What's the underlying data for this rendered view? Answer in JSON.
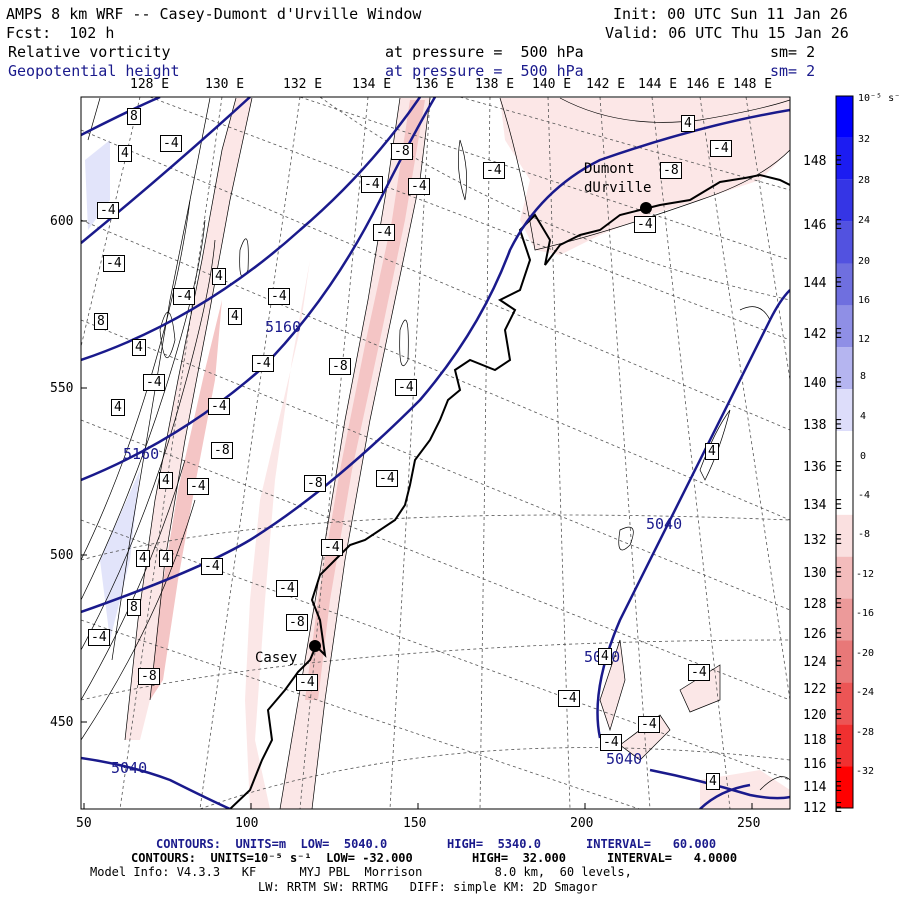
{
  "header": {
    "title": "AMPS 8 km WRF -- Casey-Dumont d'Urville Window",
    "init": "Init: 00 UTC Sun 11 Jan 26",
    "forecast": "Fcst:  102 h",
    "valid": "Valid: 06 UTC Thu 15 Jan 26",
    "field1_name": "Relative vorticity",
    "field1_level": "at pressure =  500 hPa",
    "field1_sm": "sm= 2",
    "field2_name": "Geopotential height",
    "field2_level": "at pressure =  500 hPa",
    "field2_sm": "sm= 2"
  },
  "top_longitude_labels": [
    "128 E",
    "130 E",
    "132 E",
    "134 E",
    "136 E",
    "138 E",
    "140 E",
    "142 E",
    "144 E",
    "146 E",
    "148 E"
  ],
  "right_longitude_labels": [
    "148 E",
    "146 E",
    "144 E",
    "142 E",
    "140 E",
    "138 E",
    "136 E",
    "134 E",
    "132 E",
    "130 E",
    "128 E",
    "126 E",
    "124 E",
    "122 E",
    "120 E",
    "118 E",
    "116 E",
    "114 E",
    "112 E"
  ],
  "x_axis_ticks": [
    "50",
    "100",
    "150",
    "200",
    "250"
  ],
  "y_axis_ticks": [
    "600",
    "550",
    "500",
    "450"
  ],
  "stations": [
    {
      "name": "Dumont\ndUrville"
    },
    {
      "name": "Casey"
    }
  ],
  "height_contour_labels": [
    "5160",
    "5160",
    "5040",
    "5040",
    "5040",
    "5040"
  ],
  "vorticity_labels": [
    "8",
    "4",
    "-4",
    "4",
    "-4",
    "-8",
    "-4",
    "-4",
    "-4",
    "4",
    "-8",
    "-4",
    "-4",
    "4",
    "-4",
    "8",
    "-4",
    "4",
    "4",
    "-4",
    "-8",
    "4",
    "-4",
    "-8",
    "4",
    "-4",
    "-4",
    "-8",
    "4",
    "-4",
    "-4",
    "-4",
    "8",
    "-4",
    "-8",
    "-4",
    "-8",
    "4",
    "-4",
    "-4",
    "-4",
    "-4",
    "-4",
    "-4",
    "4",
    "4",
    "-4",
    "-4",
    "-8",
    "4",
    "-4",
    "-4",
    "-4",
    "-4"
  ],
  "colorbar": {
    "unit_label": "10⁻⁵ s⁻¹",
    "ticks": [
      "32",
      "28",
      "24",
      "20",
      "16",
      "12",
      "8",
      "4",
      "0",
      "-4",
      "-8",
      "-12",
      "-16",
      "-20",
      "-24",
      "-28",
      "-32"
    ],
    "colors": [
      "#0000ff",
      "#1c1cf2",
      "#3535e5",
      "#5252e0",
      "#6f6fdf",
      "#8f8fe6",
      "#b5b5f0",
      "#ddddfa",
      "#ffffff",
      "#ffffff",
      "#fae0e0",
      "#f3bcbc",
      "#ec9a9a",
      "#e87878",
      "#ec5555",
      "#f03030",
      "#ff0000"
    ]
  },
  "footer": {
    "line1_a": "CONTOURS:  UNITS=m  LOW=  5040.0",
    "line1_b": "HIGH=  5340.0",
    "line1_c": "INTERVAL=   60.000",
    "line2_a": "CONTOURS:  UNITS=10⁻⁵ s⁻¹  LOW= -32.000",
    "line2_b": "HIGH=  32.000",
    "line2_c": "INTERVAL=   4.0000",
    "line3": "Model Info: V4.3.3   KF      MYJ PBL  Morrison          8.0 km,  60 levels,",
    "line4": "LW: RRTM SW: RRTMG   DIFF: simple KM: 2D Smagor"
  }
}
